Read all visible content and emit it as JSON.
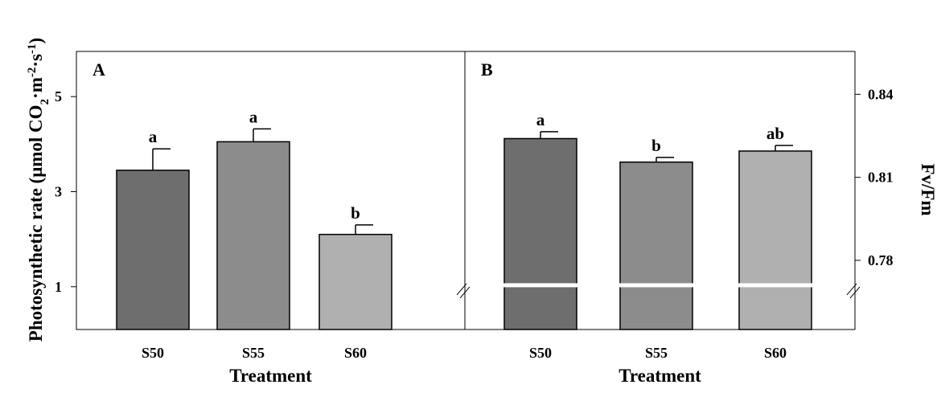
{
  "figure": {
    "ylabel_left_prefix": "Photosynthetic rate (μmol CO",
    "ylabel_left_sub": "2",
    "ylabel_left_mid": "·m",
    "ylabel_left_sup1": "-2",
    "ylabel_left_mid2": "·s",
    "ylabel_left_sup2": "-1",
    "ylabel_left_suffix": ")",
    "ylabel_right": "Fv/Fm"
  },
  "chart_data": [
    {
      "type": "bar",
      "panel_label": "A",
      "categories": [
        "S50",
        "S55",
        "S60"
      ],
      "values": [
        3.45,
        4.05,
        2.1
      ],
      "errors": [
        0.45,
        0.27,
        0.2
      ],
      "letters": [
        "a",
        "a",
        "b"
      ],
      "colors": [
        "#6e6e6e",
        "#8c8c8c",
        "#b0b0b0"
      ],
      "xlabel": "Treatment",
      "ylim": [
        0.1,
        5.95
      ],
      "yticks": [
        1,
        3,
        5
      ],
      "grid": false
    },
    {
      "type": "bar",
      "panel_label": "B",
      "categories": [
        "S50",
        "S55",
        "S60"
      ],
      "values": [
        0.824,
        0.8155,
        0.8195
      ],
      "errors": [
        0.0025,
        0.0017,
        0.002
      ],
      "letters": [
        "a",
        "b",
        "ab"
      ],
      "colors": [
        "#6e6e6e",
        "#8c8c8c",
        "#b0b0b0"
      ],
      "xlabel": "Treatment",
      "ylim": [
        0.755,
        0.8555
      ],
      "yticks": [
        0.78,
        0.81,
        0.84
      ],
      "ytick_labels": [
        "0.78",
        "0.81",
        "0.84"
      ],
      "axis_break": 0.771,
      "yaxis_side": "right",
      "grid": false
    }
  ]
}
